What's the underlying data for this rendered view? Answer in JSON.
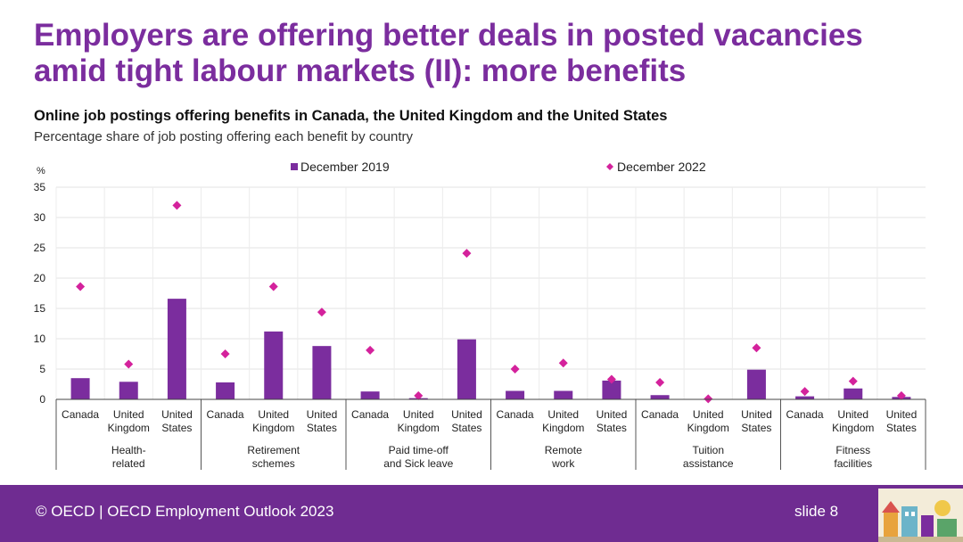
{
  "slide": {
    "title_line1": "Employers are offering better deals in posted vacancies",
    "title_line2": "amid tight labour markets (II): more benefits",
    "footer_left": "© OECD | OECD Employment Outlook 2023",
    "footer_right": "slide 8"
  },
  "chart_data": {
    "type": "bar",
    "title": "Online job postings offering benefits in Canada, the United Kingdom and the United States",
    "subtitle": "Percentage share of job posting offering each benefit  by country",
    "ylabel": "%",
    "ylim": [
      0,
      35
    ],
    "yticks": [
      0,
      5,
      10,
      15,
      20,
      25,
      30,
      35
    ],
    "grid": true,
    "legend_position": "top",
    "countries": [
      [
        "Canada"
      ],
      [
        "United",
        "Kingdom"
      ],
      [
        "United",
        "States"
      ]
    ],
    "groups": [
      {
        "label": [
          "Health-",
          "related"
        ],
        "dec2019": [
          3.5,
          2.9,
          16.6
        ],
        "dec2022": [
          18.6,
          5.8,
          32.0
        ]
      },
      {
        "label": [
          "Retirement",
          "schemes"
        ],
        "dec2019": [
          2.8,
          11.2,
          8.8
        ],
        "dec2022": [
          7.5,
          18.6,
          14.4
        ]
      },
      {
        "label": [
          "Paid time-off",
          "and Sick leave"
        ],
        "dec2019": [
          1.3,
          0.2,
          9.9
        ],
        "dec2022": [
          8.1,
          0.6,
          24.1
        ]
      },
      {
        "label": [
          "Remote",
          "work"
        ],
        "dec2019": [
          1.4,
          1.4,
          3.1
        ],
        "dec2022": [
          5.0,
          6.0,
          3.3
        ]
      },
      {
        "label": [
          "Tuition",
          "assistance"
        ],
        "dec2019": [
          0.7,
          0.0,
          4.9
        ],
        "dec2022": [
          2.8,
          0.1,
          8.5
        ]
      },
      {
        "label": [
          "Fitness",
          "facilities"
        ],
        "dec2019": [
          0.5,
          1.8,
          0.4
        ],
        "dec2022": [
          1.3,
          3.0,
          0.6
        ]
      }
    ],
    "series": [
      {
        "name": "December 2019",
        "kind": "bar",
        "color": "#7b2d9e"
      },
      {
        "name": "December 2022",
        "kind": "diamond",
        "color": "#d4229c"
      }
    ]
  }
}
